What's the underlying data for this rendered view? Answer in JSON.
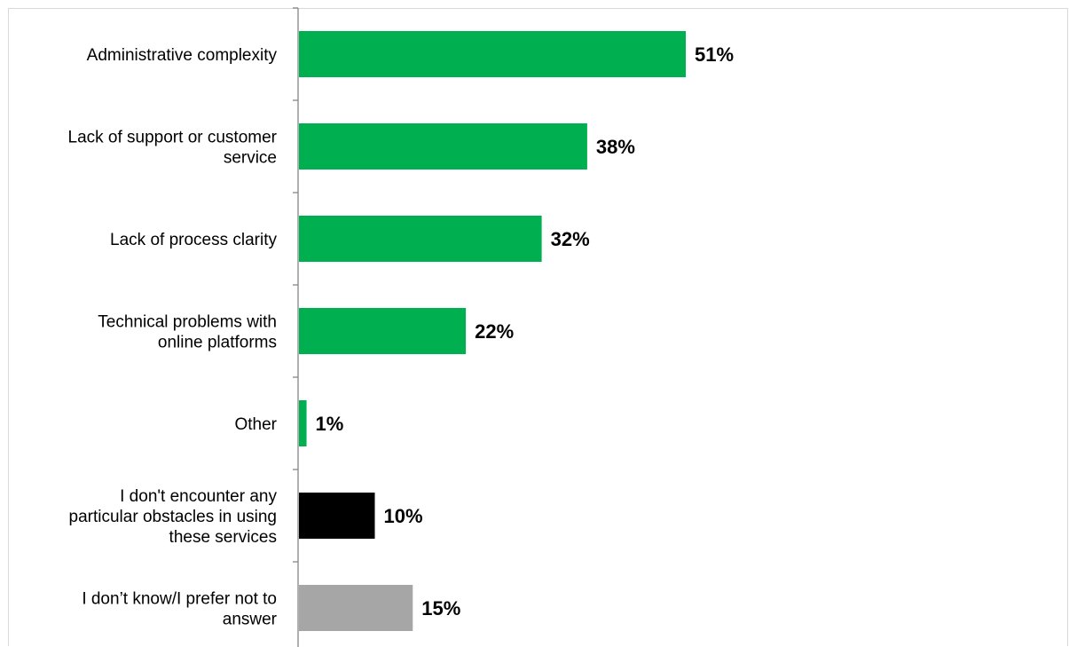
{
  "chart_data": {
    "type": "bar",
    "orientation": "horizontal",
    "categories": [
      "Administrative complexity",
      "Lack of support or customer service",
      "Lack of process clarity",
      "Technical problems with online platforms",
      "Other",
      "I don't encounter any particular obstacles in using these services",
      "I don’t know/I prefer not to answer"
    ],
    "category_lines": [
      [
        "Administrative complexity"
      ],
      [
        "Lack of support or customer",
        "service"
      ],
      [
        "Lack of process clarity"
      ],
      [
        "Technical problems with",
        "online platforms"
      ],
      [
        "Other"
      ],
      [
        "I don't encounter any",
        "particular obstacles in using",
        "these services"
      ],
      [
        "I don’t know/I prefer not to",
        "answer"
      ]
    ],
    "values": [
      51,
      38,
      32,
      22,
      1,
      10,
      15
    ],
    "value_labels": [
      "51%",
      "38%",
      "32%",
      "22%",
      "1%",
      "10%",
      "15%"
    ],
    "colors": [
      "#00b050",
      "#00b050",
      "#00b050",
      "#00b050",
      "#00b050",
      "#000000",
      "#a6a6a6"
    ],
    "xlim": [
      0,
      100
    ],
    "grid": false,
    "legend": "none"
  }
}
